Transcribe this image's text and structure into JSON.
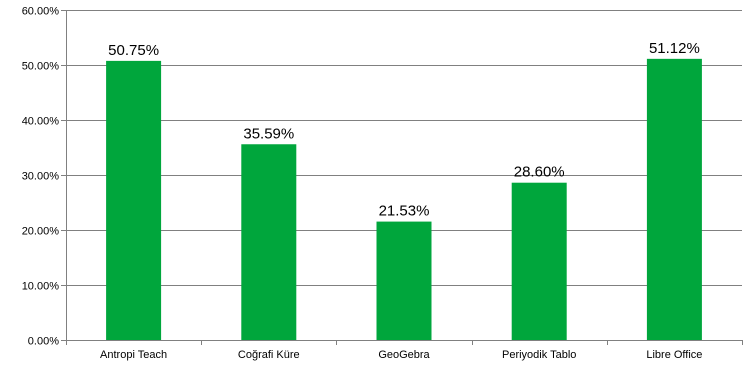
{
  "chart_data": {
    "type": "bar",
    "categories": [
      "Antropi Teach",
      "Coğrafi Küre",
      "GeoGebra",
      "Periyodik Tablo",
      "Libre Office"
    ],
    "values": [
      50.75,
      35.59,
      21.53,
      28.6,
      51.12
    ],
    "data_labels": [
      "50.75%",
      "35.59%",
      "21.53%",
      "28.60%",
      "51.12%"
    ],
    "y_ticks": [
      0,
      10,
      20,
      30,
      40,
      50,
      60
    ],
    "y_tick_labels": [
      "0.00%",
      "10.00%",
      "20.00%",
      "30.00%",
      "40.00%",
      "50.00%",
      "60.00%"
    ],
    "ylim": [
      0,
      60
    ],
    "grid": true,
    "legend": "none",
    "title": "",
    "xlabel": "",
    "ylabel": "",
    "bar_color": "#00a63c",
    "grid_color": "#808080",
    "axis_color": "#808080"
  }
}
